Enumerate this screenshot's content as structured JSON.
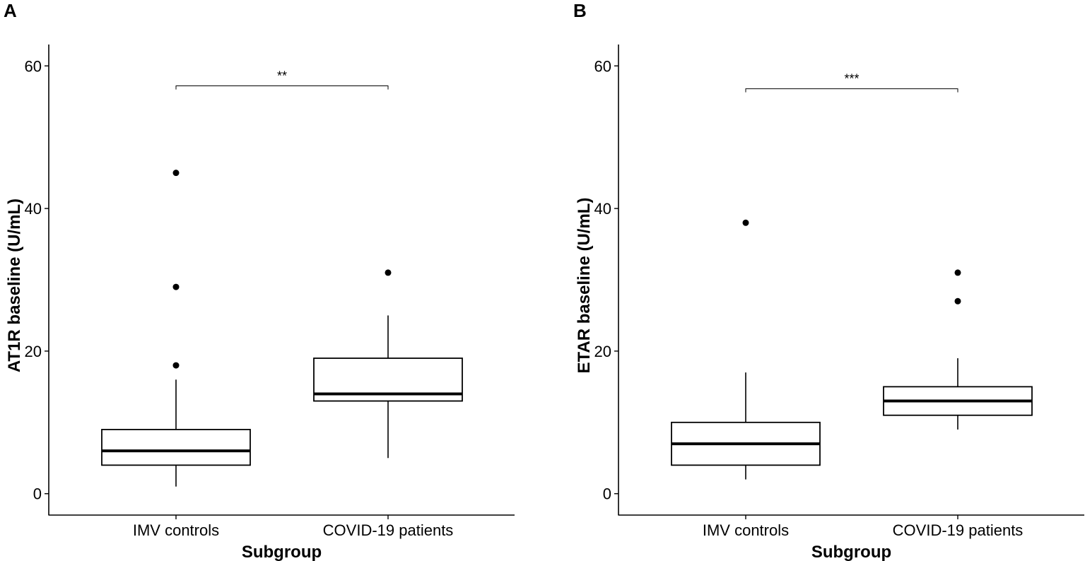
{
  "chart_data": [
    {
      "type": "box",
      "panel": "A",
      "ylabel": "AT1R baseline (U/mL)",
      "xlabel": "Subgroup",
      "ylim": [
        -3,
        63
      ],
      "yticks": [
        0,
        20,
        40,
        60
      ],
      "grid": false,
      "categories": [
        "IMV controls",
        "COVID-19 patients"
      ],
      "boxes": [
        {
          "name": "IMV controls",
          "whisker_low": 1,
          "q1": 4,
          "median": 6,
          "q3": 9,
          "whisker_high": 16,
          "outliers": [
            18,
            29,
            45
          ]
        },
        {
          "name": "COVID-19 patients",
          "whisker_low": 5,
          "q1": 13,
          "median": 14,
          "q3": 19,
          "whisker_high": 25,
          "outliers": [
            31
          ]
        }
      ],
      "significance": {
        "label": "**",
        "y": 57.2,
        "tick_drop": 0.5
      }
    },
    {
      "type": "box",
      "panel": "B",
      "ylabel": "ETAR baseline (U/mL)",
      "xlabel": "Subgroup",
      "ylim": [
        -3,
        63
      ],
      "yticks": [
        0,
        20,
        40,
        60
      ],
      "grid": false,
      "categories": [
        "IMV controls",
        "COVID-19 patients"
      ],
      "boxes": [
        {
          "name": "IMV controls",
          "whisker_low": 2,
          "q1": 4,
          "median": 7,
          "q3": 10,
          "whisker_high": 17,
          "outliers": [
            38
          ]
        },
        {
          "name": "COVID-19 patients",
          "whisker_low": 9,
          "q1": 11,
          "median": 13,
          "q3": 15,
          "whisker_high": 19,
          "outliers": [
            27,
            31
          ]
        }
      ],
      "significance": {
        "label": "***",
        "y": 56.8,
        "tick_drop": 0.5
      }
    }
  ]
}
